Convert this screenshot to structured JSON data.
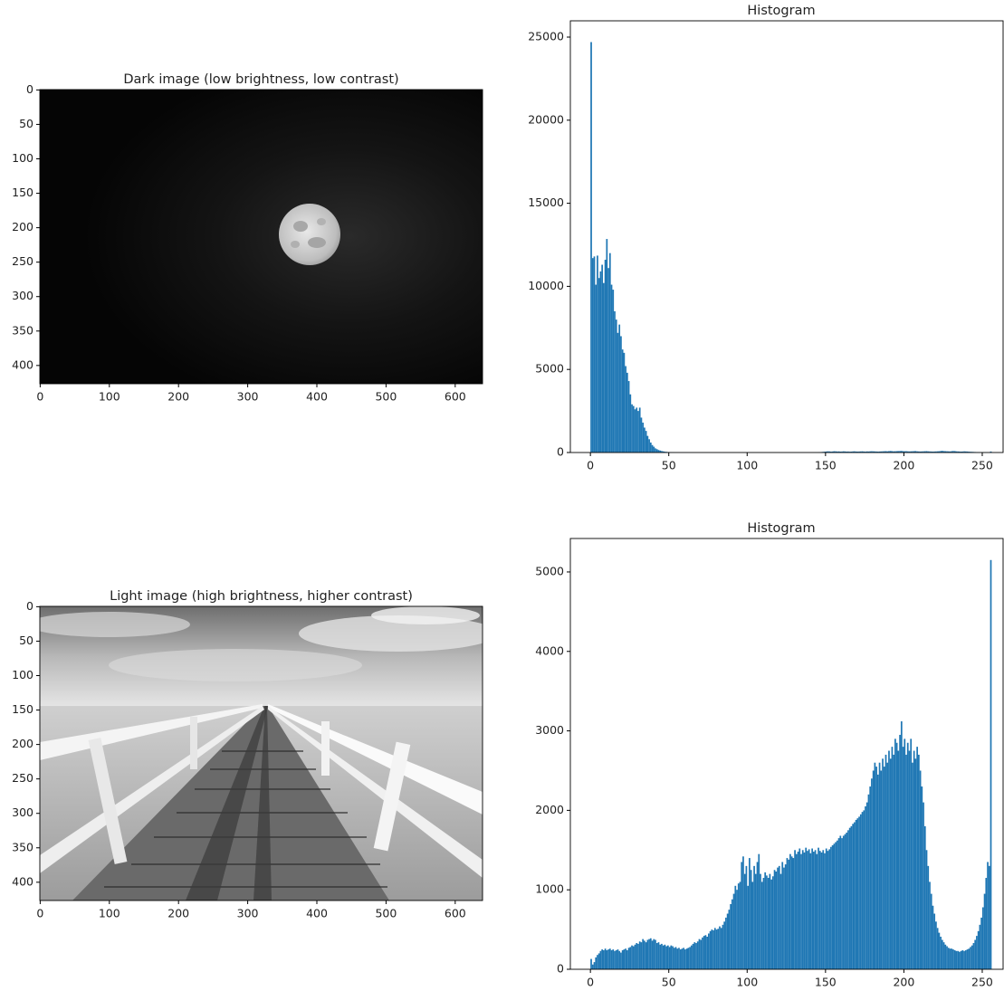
{
  "chart_data": [
    {
      "type": "image",
      "title": "Dark image (low brightness, low contrast)",
      "xlim": [
        -0.5,
        639.5
      ],
      "ylim": [
        426.5,
        -0.5
      ],
      "xticks": [
        0,
        100,
        200,
        300,
        400,
        500,
        600
      ],
      "yticks": [
        0,
        50,
        100,
        150,
        200,
        250,
        300,
        350,
        400
      ]
    },
    {
      "type": "histogram",
      "title": "Histogram",
      "color": "#1f77b4",
      "xlim": [
        -12.8,
        263.3
      ],
      "ylim": [
        0,
        25980
      ],
      "xticks": [
        0,
        50,
        100,
        150,
        200,
        250
      ],
      "yticks": [
        0,
        5000,
        10000,
        15000,
        20000,
        25000
      ],
      "bins": [
        0,
        1,
        2,
        3,
        4,
        5,
        6,
        7,
        8,
        9,
        10,
        11,
        12,
        13,
        14,
        15,
        16,
        17,
        18,
        19,
        20,
        21,
        22,
        23,
        24,
        25,
        26,
        27,
        28,
        29,
        30,
        31,
        32,
        33,
        34,
        35,
        36,
        37,
        38,
        39,
        40,
        41,
        42,
        43,
        44,
        45,
        46,
        47,
        48,
        49,
        50,
        51,
        52,
        53,
        54,
        55,
        56,
        57,
        58,
        59,
        60,
        61,
        62,
        63,
        64,
        65,
        66,
        67,
        68,
        69,
        70,
        71,
        72,
        73,
        74,
        75,
        76,
        77,
        78,
        79,
        80,
        81,
        82,
        83,
        84,
        85,
        86,
        87,
        88,
        89,
        90,
        91,
        92,
        93,
        94,
        95,
        96,
        97,
        98,
        99,
        100,
        101,
        102,
        103,
        104,
        105,
        106,
        107,
        108,
        109,
        110,
        111,
        112,
        113,
        114,
        115,
        116,
        117,
        118,
        119,
        120,
        121,
        122,
        123,
        124,
        125,
        126,
        127,
        128,
        129,
        130,
        131,
        132,
        133,
        134,
        135,
        136,
        137,
        138,
        139,
        140,
        141,
        142,
        143,
        144,
        145,
        146,
        147,
        148,
        149,
        150,
        151,
        152,
        153,
        154,
        155,
        156,
        157,
        158,
        159,
        160,
        161,
        162,
        163,
        164,
        165,
        166,
        167,
        168,
        169,
        170,
        171,
        172,
        173,
        174,
        175,
        176,
        177,
        178,
        179,
        180,
        181,
        182,
        183,
        184,
        185,
        186,
        187,
        188,
        189,
        190,
        191,
        192,
        193,
        194,
        195,
        196,
        197,
        198,
        199,
        200,
        201,
        202,
        203,
        204,
        205,
        206,
        207,
        208,
        209,
        210,
        211,
        212,
        213,
        214,
        215,
        216,
        217,
        218,
        219,
        220,
        221,
        222,
        223,
        224,
        225,
        226,
        227,
        228,
        229,
        230,
        231,
        232,
        233,
        234,
        235,
        236,
        237,
        238,
        239,
        240,
        241,
        242,
        243,
        244,
        245,
        246,
        247,
        248,
        249,
        250,
        251,
        252,
        253,
        254,
        255,
        256
      ],
      "values": [
        24700,
        11700,
        11800,
        10100,
        11850,
        10500,
        10900,
        11300,
        10200,
        11600,
        12850,
        11100,
        12000,
        10100,
        9800,
        8500,
        8000,
        7200,
        7700,
        7000,
        6200,
        6000,
        5200,
        4800,
        4300,
        3500,
        2900,
        2800,
        2600,
        2700,
        2500,
        2700,
        2100,
        1800,
        1500,
        1300,
        1000,
        800,
        600,
        450,
        350,
        250,
        200,
        150,
        120,
        90,
        70,
        50,
        40,
        30,
        20,
        15,
        12,
        10,
        8,
        7,
        6,
        5,
        5,
        4,
        4,
        4,
        3,
        3,
        3,
        3,
        2,
        2,
        2,
        2,
        2,
        3,
        2,
        2,
        3,
        2,
        2,
        3,
        2,
        2,
        2,
        2,
        3,
        2,
        2,
        3,
        2,
        2,
        2,
        3,
        2,
        3,
        2,
        2,
        3,
        2,
        2,
        3,
        2,
        2,
        3,
        2,
        2,
        3,
        2,
        2,
        3,
        2,
        2,
        3,
        2,
        3,
        2,
        2,
        3,
        2,
        2,
        3,
        2,
        2,
        3,
        2,
        3,
        2,
        3,
        2,
        3,
        3,
        2,
        3,
        3,
        3,
        4,
        3,
        4,
        4,
        5,
        4,
        5,
        6,
        6,
        7,
        8,
        9,
        10,
        15,
        20,
        30,
        40,
        50,
        60,
        70,
        65,
        55,
        60,
        75,
        70,
        60,
        65,
        55,
        60,
        70,
        65,
        55,
        60,
        50,
        55,
        65,
        70,
        60,
        55,
        60,
        65,
        70,
        60,
        55,
        65,
        60,
        70,
        75,
        70,
        65,
        60,
        55,
        60,
        65,
        70,
        75,
        80,
        70,
        85,
        90,
        80,
        70,
        75,
        80,
        85,
        90,
        95,
        80,
        75,
        80,
        70,
        65,
        70,
        75,
        80,
        85,
        70,
        65,
        60,
        65,
        70,
        75,
        80,
        70,
        65,
        60,
        55,
        60,
        65,
        70,
        75,
        90,
        100,
        85,
        80,
        75,
        70,
        65,
        80,
        90,
        85,
        70,
        65,
        60,
        55,
        60,
        70,
        65,
        60,
        50,
        45,
        40,
        35,
        30,
        25,
        20,
        15,
        12,
        10,
        10,
        8,
        8,
        6,
        60
      ]
    },
    {
      "type": "image",
      "title": "Light image (high brightness, higher contrast)",
      "xlim": [
        -0.5,
        639.5
      ],
      "ylim": [
        426.5,
        -0.5
      ],
      "xticks": [
        0,
        100,
        200,
        300,
        400,
        500,
        600
      ],
      "yticks": [
        0,
        50,
        100,
        150,
        200,
        250,
        300,
        350,
        400
      ]
    },
    {
      "type": "histogram",
      "title": "Histogram",
      "color": "#1f77b4",
      "xlim": [
        -12.8,
        263.3
      ],
      "ylim": [
        0,
        5421
      ],
      "xticks": [
        0,
        50,
        100,
        150,
        200,
        250
      ],
      "yticks": [
        0,
        1000,
        2000,
        3000,
        4000,
        5000
      ],
      "bins": [
        0,
        1,
        2,
        3,
        4,
        5,
        6,
        7,
        8,
        9,
        10,
        11,
        12,
        13,
        14,
        15,
        16,
        17,
        18,
        19,
        20,
        21,
        22,
        23,
        24,
        25,
        26,
        27,
        28,
        29,
        30,
        31,
        32,
        33,
        34,
        35,
        36,
        37,
        38,
        39,
        40,
        41,
        42,
        43,
        44,
        45,
        46,
        47,
        48,
        49,
        50,
        51,
        52,
        53,
        54,
        55,
        56,
        57,
        58,
        59,
        60,
        61,
        62,
        63,
        64,
        65,
        66,
        67,
        68,
        69,
        70,
        71,
        72,
        73,
        74,
        75,
        76,
        77,
        78,
        79,
        80,
        81,
        82,
        83,
        84,
        85,
        86,
        87,
        88,
        89,
        90,
        91,
        92,
        93,
        94,
        95,
        96,
        97,
        98,
        99,
        100,
        101,
        102,
        103,
        104,
        105,
        106,
        107,
        108,
        109,
        110,
        111,
        112,
        113,
        114,
        115,
        116,
        117,
        118,
        119,
        120,
        121,
        122,
        123,
        124,
        125,
        126,
        127,
        128,
        129,
        130,
        131,
        132,
        133,
        134,
        135,
        136,
        137,
        138,
        139,
        140,
        141,
        142,
        143,
        144,
        145,
        146,
        147,
        148,
        149,
        150,
        151,
        152,
        153,
        154,
        155,
        156,
        157,
        158,
        159,
        160,
        161,
        162,
        163,
        164,
        165,
        166,
        167,
        168,
        169,
        170,
        171,
        172,
        173,
        174,
        175,
        176,
        177,
        178,
        179,
        180,
        181,
        182,
        183,
        184,
        185,
        186,
        187,
        188,
        189,
        190,
        191,
        192,
        193,
        194,
        195,
        196,
        197,
        198,
        199,
        200,
        201,
        202,
        203,
        204,
        205,
        206,
        207,
        208,
        209,
        210,
        211,
        212,
        213,
        214,
        215,
        216,
        217,
        218,
        219,
        220,
        221,
        222,
        223,
        224,
        225,
        226,
        227,
        228,
        229,
        230,
        231,
        232,
        233,
        234,
        235,
        236,
        237,
        238,
        239,
        240,
        241,
        242,
        243,
        244,
        245,
        246,
        247,
        248,
        249,
        250,
        251,
        252,
        253,
        254,
        255,
        256
      ],
      "values": [
        130,
        60,
        90,
        150,
        180,
        200,
        230,
        250,
        240,
        260,
        240,
        250,
        260,
        240,
        250,
        230,
        240,
        250,
        230,
        210,
        240,
        250,
        260,
        240,
        270,
        280,
        300,
        290,
        310,
        330,
        320,
        350,
        340,
        380,
        360,
        340,
        370,
        380,
        390,
        360,
        380,
        370,
        330,
        340,
        310,
        320,
        300,
        310,
        290,
        300,
        280,
        300,
        290,
        270,
        280,
        260,
        270,
        250,
        260,
        270,
        250,
        260,
        270,
        280,
        300,
        320,
        340,
        330,
        350,
        380,
        370,
        400,
        420,
        430,
        410,
        450,
        480,
        500,
        490,
        520,
        500,
        510,
        540,
        520,
        560,
        600,
        650,
        700,
        750,
        820,
        880,
        950,
        1050,
        1000,
        1080,
        1100,
        1350,
        1420,
        1200,
        1300,
        1050,
        1400,
        1250,
        1100,
        1300,
        1200,
        1350,
        1450,
        1200,
        1100,
        1150,
        1220,
        1180,
        1150,
        1200,
        1130,
        1170,
        1250,
        1230,
        1280,
        1300,
        1200,
        1350,
        1280,
        1320,
        1400,
        1380,
        1450,
        1420,
        1400,
        1500,
        1450,
        1480,
        1520,
        1450,
        1500,
        1470,
        1530,
        1490,
        1510,
        1460,
        1520,
        1480,
        1500,
        1450,
        1530,
        1490,
        1470,
        1500,
        1460,
        1520,
        1490,
        1510,
        1540,
        1560,
        1580,
        1600,
        1620,
        1650,
        1680,
        1650,
        1680,
        1700,
        1720,
        1750,
        1780,
        1800,
        1830,
        1850,
        1880,
        1900,
        1920,
        1950,
        1980,
        2000,
        2050,
        2100,
        2200,
        2300,
        2400,
        2500,
        2600,
        2550,
        2450,
        2600,
        2500,
        2650,
        2550,
        2700,
        2600,
        2750,
        2650,
        2800,
        2700,
        2900,
        2850,
        2750,
        2950,
        3120,
        2800,
        2900,
        2700,
        2850,
        2750,
        2900,
        2600,
        2750,
        2650,
        2800,
        2700,
        2500,
        2300,
        2100,
        1800,
        1500,
        1300,
        1100,
        950,
        800,
        700,
        600,
        520,
        460,
        410,
        370,
        340,
        310,
        290,
        270,
        260,
        260,
        250,
        240,
        230,
        230,
        220,
        230,
        240,
        230,
        240,
        250,
        260,
        280,
        300,
        330,
        370,
        420,
        480,
        560,
        650,
        780,
        950,
        1150,
        1350,
        1300,
        5150
      ]
    }
  ]
}
